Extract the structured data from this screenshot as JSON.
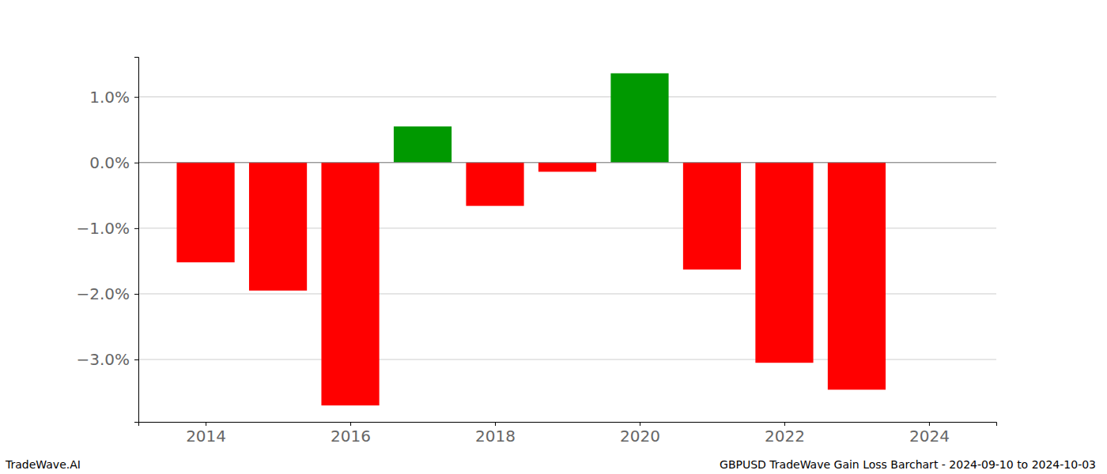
{
  "chart_data": {
    "type": "bar",
    "title": "GBPUSD TradeWave Gain Loss Barchart - 2024-09-10 to 2024-10-03",
    "source": "TradeWave.AI",
    "x": [
      2014,
      2015,
      2016,
      2017,
      2018,
      2019,
      2020,
      2021,
      2022,
      2023
    ],
    "values": [
      -1.52,
      -1.95,
      -3.7,
      0.55,
      -0.66,
      -0.14,
      1.36,
      -1.63,
      -3.05,
      -3.46
    ],
    "colors": [
      "#ff0000",
      "#ff0000",
      "#ff0000",
      "#009900",
      "#ff0000",
      "#ff0000",
      "#009900",
      "#ff0000",
      "#ff0000",
      "#ff0000"
    ],
    "xlim": [
      2013.07,
      2024.93
    ],
    "xticks": [
      2014,
      2016,
      2018,
      2020,
      2022,
      2024
    ],
    "ylim": [
      -3.95,
      1.61
    ],
    "yticks": [
      {
        "value": -3,
        "label": "−3.0%"
      },
      {
        "value": -2,
        "label": "−2.0%"
      },
      {
        "value": -1,
        "label": "−1.0%"
      },
      {
        "value": 0,
        "label": "0.0%"
      },
      {
        "value": 1,
        "label": "1.0%"
      }
    ],
    "grid": true
  }
}
